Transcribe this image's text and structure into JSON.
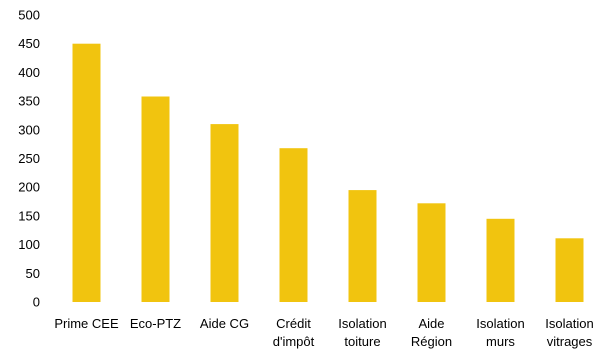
{
  "chart_data": {
    "type": "bar",
    "title": "",
    "xlabel": "",
    "ylabel": "",
    "ylim": [
      0,
      500
    ],
    "yticks": [
      0,
      50,
      100,
      150,
      200,
      250,
      300,
      350,
      400,
      450,
      500
    ],
    "grid": false,
    "legend": "none",
    "bar_color": "#F1C40F",
    "categories": [
      [
        "Prime CEE"
      ],
      [
        "Eco-PTZ"
      ],
      [
        "Aide CG"
      ],
      [
        "Crédit",
        "d'impôt"
      ],
      [
        "Isolation",
        "toiture"
      ],
      [
        "Aide",
        "Région"
      ],
      [
        "Isolation",
        "murs"
      ],
      [
        "Isolation",
        "vitrages"
      ]
    ],
    "values": [
      450,
      358,
      310,
      268,
      195,
      172,
      145,
      111
    ]
  }
}
